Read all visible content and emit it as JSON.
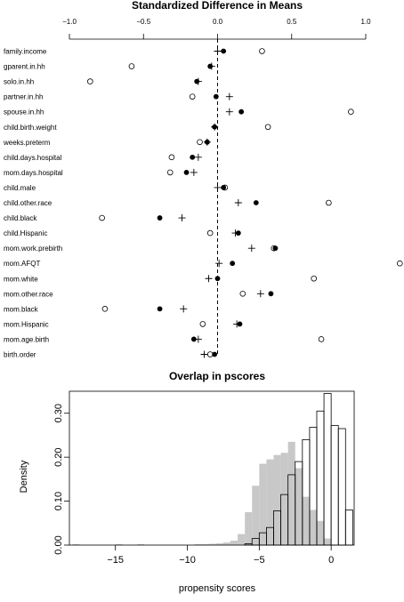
{
  "chart_data": [
    {
      "type": "scatter",
      "title": "Standardized Difference in Means",
      "xlim": [
        -1.05,
        1.25
      ],
      "x_ticks": [
        -1.0,
        -0.5,
        0.0,
        0.5,
        1.0
      ],
      "x_tick_labels": [
        "−1.0",
        "−0.5",
        "0.0",
        "0.5",
        "1.0"
      ],
      "axis_position": "top",
      "reference_line": {
        "x": 0,
        "style": "dashed"
      },
      "markers": {
        "open_circle": "open circle",
        "filled_circle": "filled circle",
        "plus": "plus"
      },
      "variables": [
        {
          "label": "family.income",
          "open": 0.3,
          "filled": 0.04,
          "plus": 0.0
        },
        {
          "label": "gparent.in.hh",
          "open": -0.58,
          "filled": -0.05,
          "plus": -0.04
        },
        {
          "label": "solo.in.hh",
          "open": -0.86,
          "filled": -0.14,
          "plus": -0.13
        },
        {
          "label": "partner.in.hh",
          "open": -0.17,
          "filled": -0.01,
          "plus": 0.08
        },
        {
          "label": "spouse.in.hh",
          "open": 0.9,
          "filled": 0.16,
          "plus": 0.08
        },
        {
          "label": "child.birth.weight",
          "open": 0.34,
          "filled": -0.02,
          "plus": -0.02
        },
        {
          "label": "weeks.preterm",
          "open": -0.12,
          "filled": -0.07,
          "plus": -0.07
        },
        {
          "label": "child.days.hospital",
          "open": -0.31,
          "filled": -0.17,
          "plus": -0.13
        },
        {
          "label": "mom.days.hospital",
          "open": -0.32,
          "filled": -0.21,
          "plus": -0.16
        },
        {
          "label": "child.male",
          "open": 0.05,
          "filled": 0.04,
          "plus": 0.0
        },
        {
          "label": "child.other.race",
          "open": 0.75,
          "filled": 0.26,
          "plus": 0.14
        },
        {
          "label": "child.black",
          "open": -0.78,
          "filled": -0.39,
          "plus": -0.24
        },
        {
          "label": "child.Hispanic",
          "open": -0.05,
          "filled": 0.14,
          "plus": 0.12
        },
        {
          "label": "mom.work.prebirth",
          "open": 0.38,
          "filled": 0.39,
          "plus": 0.23
        },
        {
          "label": "mom.AFQT",
          "open": 1.23,
          "filled": 0.1,
          "plus": 0.01
        },
        {
          "label": "mom.white",
          "open": 0.65,
          "filled": 0.0,
          "plus": -0.06
        },
        {
          "label": "mom.other.race",
          "open": 0.17,
          "filled": 0.36,
          "plus": 0.29
        },
        {
          "label": "mom.black",
          "open": -0.76,
          "filled": -0.39,
          "plus": -0.23
        },
        {
          "label": "mom.Hispanic",
          "open": -0.1,
          "filled": 0.15,
          "plus": 0.13
        },
        {
          "label": "mom.age.birth",
          "open": 0.7,
          "filled": -0.16,
          "plus": -0.13
        },
        {
          "label": "birth.order",
          "open": -0.05,
          "filled": -0.02,
          "plus": -0.09
        }
      ]
    },
    {
      "type": "histogram",
      "title": "Overlap in pscores",
      "xlabel": "propensity scores",
      "ylabel": "Density",
      "xlim": [
        -18.2,
        1.6
      ],
      "ylim": [
        0,
        0.35
      ],
      "x_ticks": [
        -15,
        -10,
        -5,
        0
      ],
      "x_tick_labels": [
        "−15",
        "−10",
        "−5",
        "0"
      ],
      "y_ticks": [
        0.0,
        0.1,
        0.2,
        0.3
      ],
      "y_tick_labels": [
        "0.00",
        "0.10",
        "0.20",
        "0.30"
      ],
      "bin_width": 0.5,
      "series": [
        {
          "fill": "gray",
          "bins_start": -18,
          "values": [
            0.002,
            0,
            0,
            0,
            0,
            0,
            0.002,
            0,
            0,
            0.002,
            0,
            0,
            0,
            0,
            0,
            0,
            0,
            0.002,
            0.002,
            0.003,
            0.004,
            0.006,
            0.01,
            0.025,
            0.075,
            0.135,
            0.185,
            0.195,
            0.205,
            0.21,
            0.235,
            0.175,
            0.11,
            0.08,
            0.055,
            0.015
          ]
        },
        {
          "fill": "white",
          "bins_start": -6,
          "values": [
            0.003,
            0.015,
            0.028,
            0.04,
            0.078,
            0.115,
            0.16,
            0.19,
            0.24,
            0.268,
            0.305,
            0.345,
            0.272,
            0.265,
            0.08
          ]
        }
      ]
    }
  ]
}
